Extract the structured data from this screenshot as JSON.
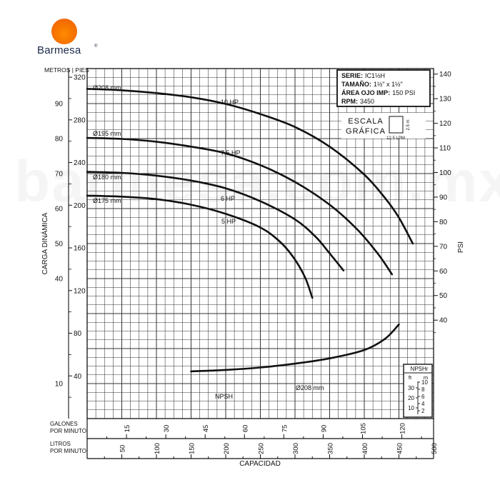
{
  "brand": {
    "name": "Barmesa",
    "registered": "®",
    "watermark": "barmesa.com.mx"
  },
  "colors": {
    "brand_orange": "#f26a00",
    "ink": "#111111",
    "grid": "#3a3a3a"
  },
  "spec_box": {
    "serie_label": "SERIE:",
    "serie_value": "IC1½H",
    "tamano_label": "TAMAÑO:",
    "tamano_value": "1½\" x 1½\"",
    "area_label": "ÁREA OJO IMP:",
    "area_value": "150 PSI",
    "rpm_label": "RPM:",
    "rpm_value": "3450"
  },
  "scale_box": {
    "label1": "ESCALA",
    "label2": "GRÁFICA",
    "vert": "2.5 m",
    "horiz": "12.5 LPM"
  },
  "nps_box": {
    "title": "NPSHr",
    "ft_label": "ft",
    "m_label": "m",
    "ft_ticks": [
      "30",
      "20",
      "10"
    ],
    "m_ticks": [
      "10",
      "8",
      "6",
      "4",
      "2"
    ]
  },
  "chart_data": {
    "type": "line",
    "xlabel": "CAPACIDAD",
    "ylabel": "CARGA DINÁMICA",
    "y_units_label": "METROS | PIES",
    "psi_label": "PSI",
    "gpm_label": [
      "GALONES",
      "POR MINUTO"
    ],
    "lpm_label": [
      "LITROS",
      "POR MINUTO"
    ],
    "xlim_lpm": [
      0,
      500
    ],
    "ylim_m": [
      0,
      100
    ],
    "meters_ticks": [
      10,
      20,
      30,
      40,
      50,
      60,
      70,
      80,
      90,
      100
    ],
    "meters_labels": [
      "10",
      "",
      "",
      "40",
      "50",
      "60",
      "70",
      "80",
      "90",
      ""
    ],
    "feet_ticks": [
      "40",
      "80",
      "120",
      "160",
      "200",
      "240",
      "280",
      "320"
    ],
    "feet_values": [
      40,
      80,
      120,
      160,
      200,
      240,
      280,
      320
    ],
    "psi_ticks": [
      "40",
      "50",
      "60",
      "70",
      "80",
      "90",
      "100",
      "110",
      "120",
      "130",
      "140"
    ],
    "psi_values": [
      40,
      50,
      60,
      70,
      80,
      90,
      100,
      110,
      120,
      130,
      140
    ],
    "gpm_ticks": [
      "15",
      "30",
      "45",
      "60",
      "75",
      "90",
      "105",
      "120"
    ],
    "gpm_values": [
      15,
      30,
      45,
      60,
      75,
      90,
      105,
      120
    ],
    "lpm_ticks": [
      "50",
      "100",
      "150",
      "200",
      "250",
      "300",
      "350",
      "400",
      "450",
      "500"
    ],
    "lpm_values": [
      50,
      100,
      150,
      200,
      250,
      300,
      350,
      400,
      450,
      500
    ],
    "series": [
      {
        "name": "Ø208 mm",
        "hp": "10 HP",
        "points": [
          [
            0,
            94.2
          ],
          [
            50,
            93.8
          ],
          [
            100,
            93.0
          ],
          [
            150,
            91.8
          ],
          [
            200,
            89.9
          ],
          [
            250,
            87.0
          ],
          [
            300,
            83.3
          ],
          [
            350,
            77.7
          ],
          [
            400,
            69.7
          ],
          [
            430,
            63.0
          ],
          [
            450,
            57.4
          ],
          [
            470,
            50.0
          ]
        ]
      },
      {
        "name": "Ø195 mm",
        "hp": "7.5 HP",
        "points": [
          [
            0,
            80.2
          ],
          [
            50,
            79.9
          ],
          [
            100,
            79.1
          ],
          [
            150,
            77.7
          ],
          [
            200,
            75.8
          ],
          [
            250,
            72.4
          ],
          [
            300,
            67.6
          ],
          [
            350,
            61.1
          ],
          [
            390,
            54.0
          ],
          [
            420,
            47.0
          ],
          [
            440,
            41.2
          ]
        ]
      },
      {
        "name": "Ø180 mm",
        "hp": "6 HP",
        "points": [
          [
            0,
            70.5
          ],
          [
            50,
            70.2
          ],
          [
            100,
            69.4
          ],
          [
            150,
            68.0
          ],
          [
            200,
            65.8
          ],
          [
            250,
            62.1
          ],
          [
            300,
            56.9
          ],
          [
            330,
            51.9
          ],
          [
            350,
            47.2
          ],
          [
            370,
            42.3
          ]
        ]
      },
      {
        "name": "Ø175 mm",
        "hp": "5 HP",
        "points": [
          [
            0,
            63.7
          ],
          [
            50,
            63.4
          ],
          [
            100,
            62.7
          ],
          [
            150,
            61.1
          ],
          [
            200,
            58.5
          ],
          [
            250,
            54.6
          ],
          [
            280,
            50.2
          ],
          [
            300,
            45.4
          ],
          [
            315,
            40.1
          ],
          [
            325,
            34.5
          ]
        ]
      },
      {
        "name": "NPSH",
        "diameter": "Ø208 mm",
        "points": [
          [
            150,
            13.5
          ],
          [
            200,
            13.9
          ],
          [
            250,
            14.6
          ],
          [
            300,
            15.7
          ],
          [
            350,
            17.2
          ],
          [
            400,
            19.6
          ],
          [
            430,
            22.8
          ],
          [
            450,
            26.9
          ]
        ]
      }
    ]
  }
}
